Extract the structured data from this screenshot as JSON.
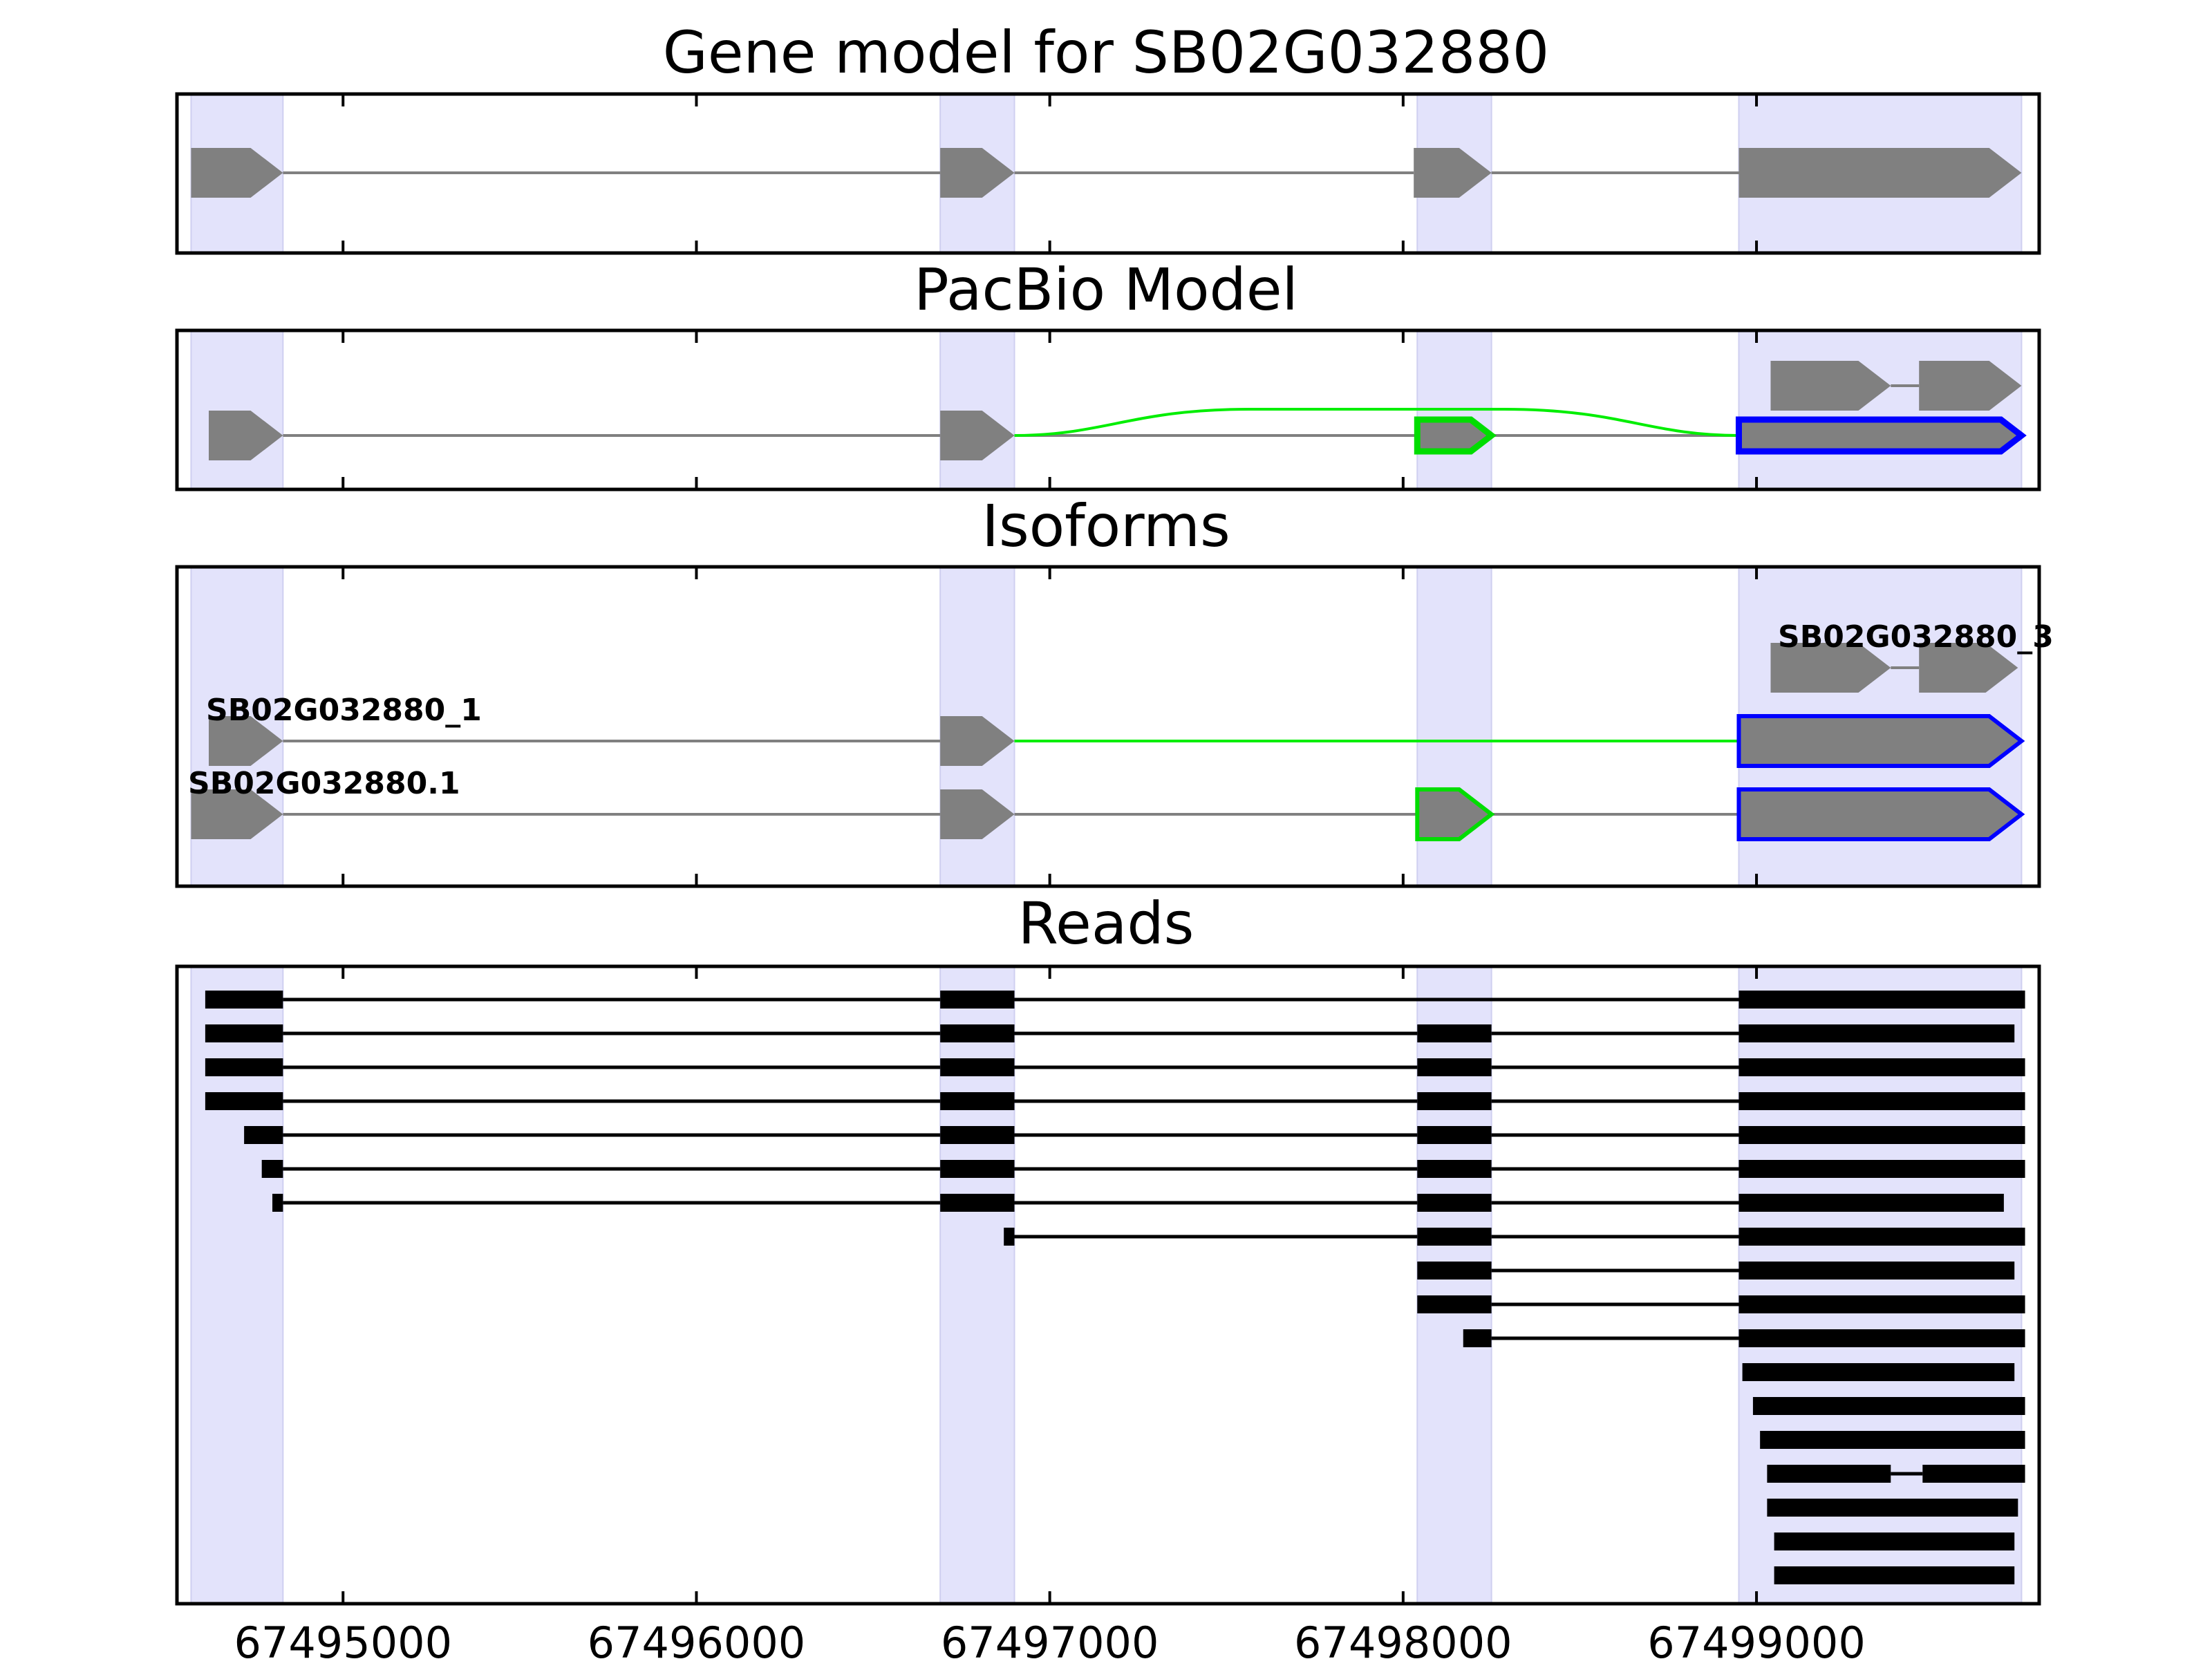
{
  "chart_data": {
    "type": "gene-model-track",
    "x_axis": {
      "xlim": [
        67494530,
        67499800
      ],
      "ticks": [
        67495000,
        67496000,
        67497000,
        67498000,
        67499000
      ],
      "tick_labels": [
        "67495000",
        "67496000",
        "67497000",
        "67498000",
        "67499000"
      ]
    },
    "highlight_regions": [
      [
        67494570,
        67494830
      ],
      [
        67496690,
        67496900
      ],
      [
        67498040,
        67498250
      ],
      [
        67498950,
        67499750
      ]
    ],
    "colors": {
      "exon_fill": "#808080",
      "intron": "#808080",
      "highlight": "#e3e3fb",
      "alt_exon_edge": "#00dd00",
      "alt_junction": "#00ee00",
      "alt_utr_edge": "#0000ff",
      "read": "#000000"
    },
    "panels": [
      {
        "title": "Gene model for SB02G032880",
        "rows": [
          {
            "label": "",
            "exons": [
              [
                67494570,
                67494830
              ],
              [
                67496690,
                67496900
              ],
              [
                67498030,
                67498250
              ],
              [
                67498950,
                67499750
              ]
            ]
          }
        ]
      },
      {
        "title": "PacBio Model",
        "rows": [
          {
            "label": "",
            "exons": [
              [
                67499040,
                67499380
              ],
              [
                67499460,
                67499750
              ]
            ]
          },
          {
            "label": "",
            "exons": [
              [
                67494620,
                67494830
              ],
              [
                67496690,
                67496900
              ],
              [
                67498040,
                67498250
              ],
              [
                67498950,
                67499750
              ]
            ],
            "highlight_exons": [
              2,
              3
            ],
            "skip_junction": [
              67496900,
              67498950
            ]
          }
        ]
      },
      {
        "title": "Isoforms",
        "rows": [
          {
            "label": "SB02G032880_3",
            "exons": [
              [
                67499040,
                67499380
              ],
              [
                67499460,
                67499740
              ]
            ]
          },
          {
            "label": "SB02G032880_1",
            "exons": [
              [
                67494620,
                67494830
              ],
              [
                67496690,
                67496900
              ],
              [
                67498950,
                67499750
              ]
            ],
            "highlight_exons": [
              2
            ],
            "skip_junction": [
              67496900,
              67498950
            ]
          },
          {
            "label": "SB02G032880.1",
            "exons": [
              [
                67494570,
                67494830
              ],
              [
                67496690,
                67496900
              ],
              [
                67498040,
                67498250
              ],
              [
                67498950,
                67499750
              ]
            ],
            "highlight_exons": [
              2,
              3
            ]
          }
        ]
      },
      {
        "title": "Reads",
        "reads": [
          [
            [
              67494610,
              67494830
            ],
            [
              67496690,
              67496900
            ],
            [
              67498950,
              67499760
            ]
          ],
          [
            [
              67494610,
              67494830
            ],
            [
              67496690,
              67496900
            ],
            [
              67498040,
              67498250
            ],
            [
              67498950,
              67499730
            ]
          ],
          [
            [
              67494610,
              67494830
            ],
            [
              67496690,
              67496900
            ],
            [
              67498040,
              67498250
            ],
            [
              67498950,
              67499760
            ]
          ],
          [
            [
              67494610,
              67494830
            ],
            [
              67496690,
              67496900
            ],
            [
              67498040,
              67498250
            ],
            [
              67498950,
              67499760
            ]
          ],
          [
            [
              67494720,
              67494830
            ],
            [
              67496690,
              67496900
            ],
            [
              67498040,
              67498250
            ],
            [
              67498950,
              67499760
            ]
          ],
          [
            [
              67494770,
              67494830
            ],
            [
              67496690,
              67496900
            ],
            [
              67498040,
              67498250
            ],
            [
              67498950,
              67499760
            ]
          ],
          [
            [
              67494800,
              67494830
            ],
            [
              67496690,
              67496900
            ],
            [
              67498040,
              67498250
            ],
            [
              67498950,
              67499700
            ]
          ],
          [
            [
              67496870,
              67496900
            ],
            [
              67498040,
              67498250
            ],
            [
              67498950,
              67499760
            ]
          ],
          [
            [
              67498040,
              67498250
            ],
            [
              67498950,
              67499730
            ]
          ],
          [
            [
              67498040,
              67498250
            ],
            [
              67498950,
              67499760
            ]
          ],
          [
            [
              67498170,
              67498250
            ],
            [
              67498950,
              67499760
            ]
          ],
          [
            [
              67498960,
              67499730
            ]
          ],
          [
            [
              67498990,
              67499760
            ]
          ],
          [
            [
              67499010,
              67499760
            ]
          ],
          [
            [
              67499030,
              67499380
            ],
            [
              67499470,
              67499760
            ]
          ],
          [
            [
              67499030,
              67499740
            ]
          ],
          [
            [
              67499050,
              67499730
            ]
          ],
          [
            [
              67499050,
              67499730
            ]
          ]
        ]
      }
    ]
  }
}
